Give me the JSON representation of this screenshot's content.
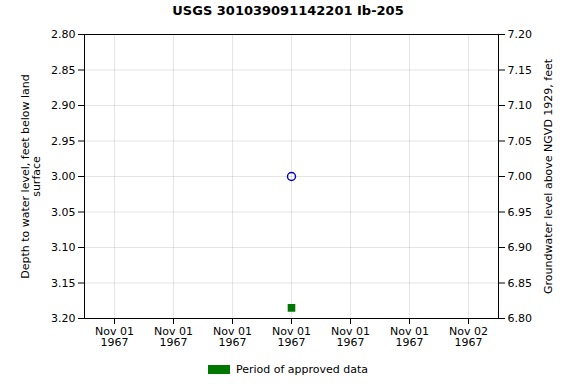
{
  "chart_data": {
    "type": "scatter",
    "title": "USGS 301039091142201 Ib-205",
    "ylabel": "Depth to water level, feet below land\nsurface",
    "y2label": "Groundwater level above NGVD 1929, feet",
    "categories": [
      "Nov 01\n1967",
      "Nov 01\n1967",
      "Nov 01\n1967",
      "Nov 01\n1967",
      "Nov 01\n1967",
      "Nov 01\n1967",
      "Nov 02\n1967"
    ],
    "series": [
      {
        "color": "#0000bb",
        "marker": "circle",
        "values": [
          null,
          null,
          null,
          3.0,
          null,
          null,
          null
        ]
      },
      {
        "name": "Period of approved data",
        "color": "#007700",
        "marker": "square",
        "values": [
          null,
          null,
          null,
          3.185,
          null,
          null,
          null
        ]
      }
    ],
    "ylim": [
      3.2,
      2.8
    ],
    "yticks": [
      {
        "value": 2.8,
        "label": "2.80"
      },
      2.85,
      {
        "value": 2.9,
        "label": "2.90"
      },
      2.95,
      {
        "value": 3.0,
        "label": "3.00"
      },
      3.05,
      {
        "value": 3.1,
        "label": "3.10"
      },
      3.15,
      {
        "value": 3.2,
        "label": "3.20"
      }
    ],
    "y2lim": [
      6.8,
      7.2
    ],
    "y2ticks": [
      {
        "value": 7.2,
        "label": "7.20"
      },
      7.15,
      {
        "value": 7.1,
        "label": "7.10"
      },
      7.05,
      {
        "value": 7.0,
        "label": "7.00"
      },
      6.95,
      {
        "value": 6.9,
        "label": "6.90"
      },
      6.85,
      {
        "value": 6.8,
        "label": "6.80"
      }
    ],
    "grid": true,
    "legend": "bottom"
  }
}
